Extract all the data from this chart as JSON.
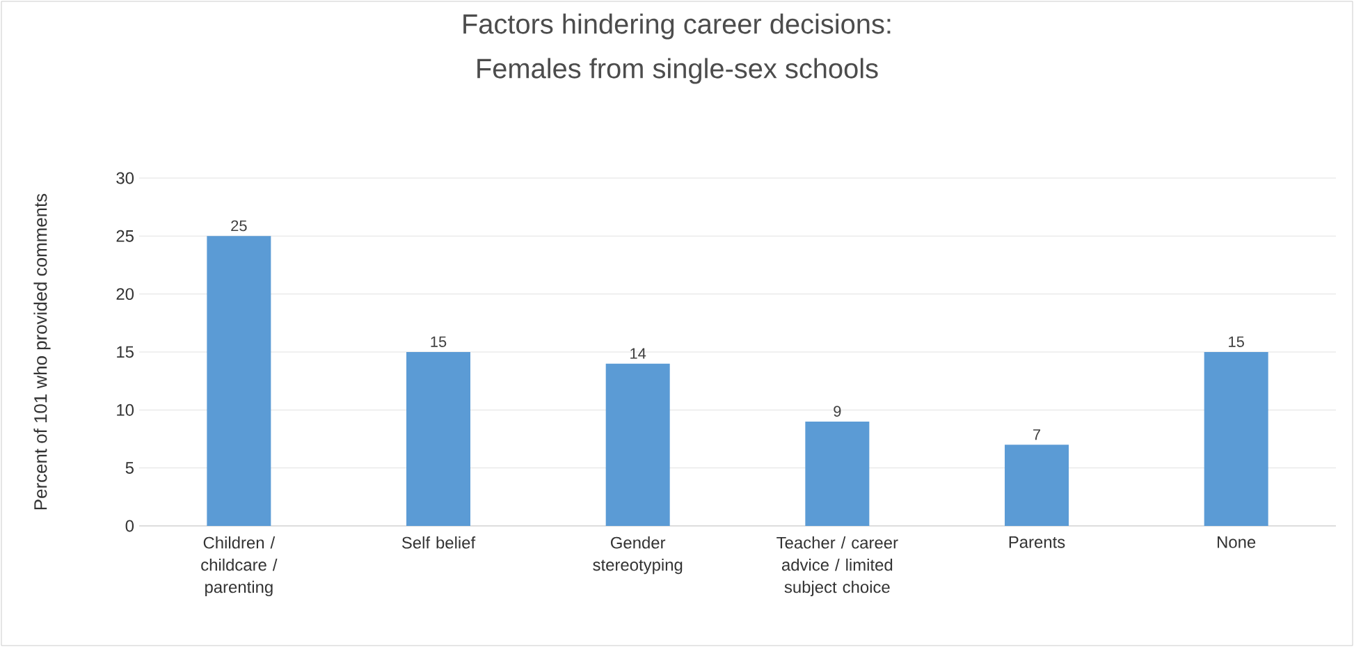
{
  "chart_data": {
    "type": "bar",
    "title": "Factors hindering career decisions:",
    "subtitle": "Females from single-sex schools",
    "ylabel": "Percent of 101 who provided comments",
    "categories": [
      "Children / childcare / parenting",
      "Self belief",
      "Gender stereotyping",
      "Teacher / career advice / limited subject choice",
      "Parents",
      "None"
    ],
    "values": [
      25,
      15,
      14,
      9,
      7,
      15
    ],
    "color": "#5b9bd5",
    "ylim": [
      0,
      30
    ],
    "yticks": [
      0,
      5,
      10,
      15,
      20,
      25,
      30
    ],
    "grid": "y",
    "data_labels": true
  }
}
